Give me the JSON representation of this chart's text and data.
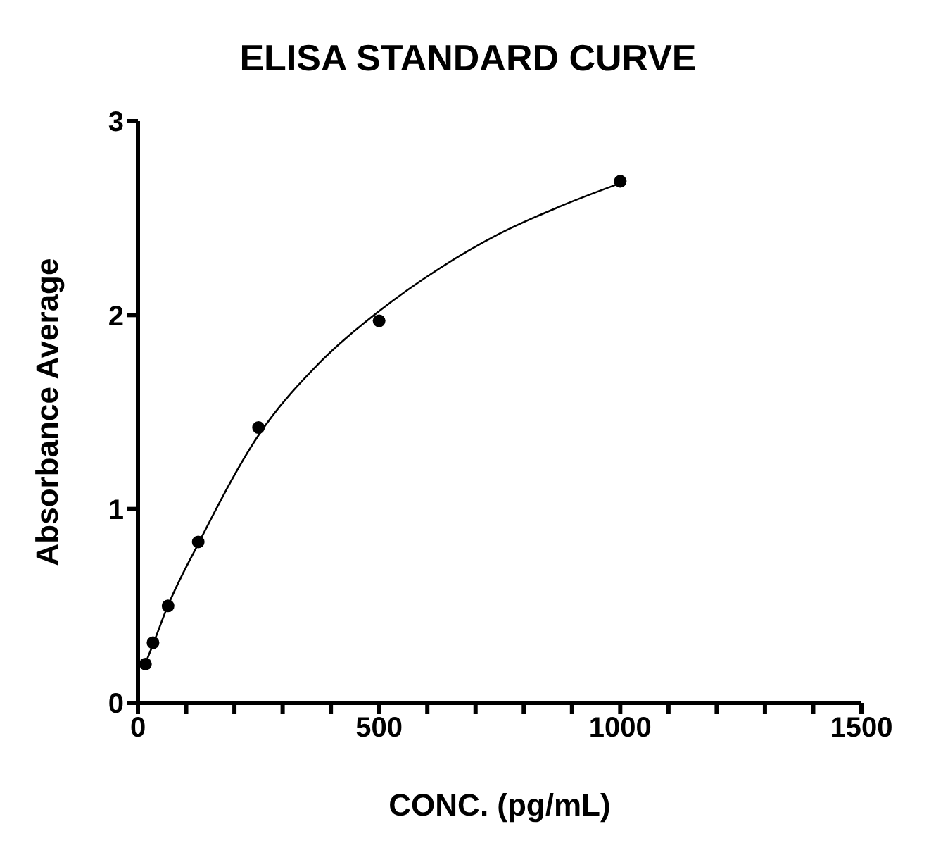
{
  "chart_data": {
    "type": "scatter",
    "title": "ELISA STANDARD CURVE",
    "xlabel": "CONC. (pg/mL)",
    "ylabel": "Absorbance Average",
    "x": [
      15.6,
      31.25,
      62.5,
      125,
      250,
      500,
      1000
    ],
    "series": [
      {
        "type": "scatter",
        "color": "#000000",
        "marker": "circle",
        "values": [
          0.2,
          0.31,
          0.5,
          0.83,
          1.42,
          1.97,
          2.69
        ]
      },
      {
        "type": "line",
        "color": "#000000",
        "marker": "none",
        "x": [
          15,
          31,
          62,
          125,
          250,
          375,
          500,
          625,
          750,
          875,
          1000
        ],
        "values": [
          0.2,
          0.3,
          0.5,
          0.82,
          1.38,
          1.75,
          2.02,
          2.24,
          2.42,
          2.56,
          2.68
        ]
      }
    ],
    "xlim": [
      0,
      1500
    ],
    "xticks": [
      0,
      {
        "value": 100,
        "label": null
      },
      {
        "value": 200,
        "label": null
      },
      {
        "value": 300,
        "label": null
      },
      {
        "value": 400,
        "label": null
      },
      500,
      {
        "value": 600,
        "label": null
      },
      {
        "value": 700,
        "label": null
      },
      {
        "value": 800,
        "label": null
      },
      {
        "value": 900,
        "label": null
      },
      1000,
      {
        "value": 1100,
        "label": null
      },
      {
        "value": 1200,
        "label": null
      },
      {
        "value": 1300,
        "label": null
      },
      {
        "value": 1400,
        "label": null
      },
      1500
    ],
    "ylim": [
      0,
      3
    ],
    "yticks": [
      0,
      1,
      2,
      3
    ],
    "grid": false,
    "legend": false
  }
}
